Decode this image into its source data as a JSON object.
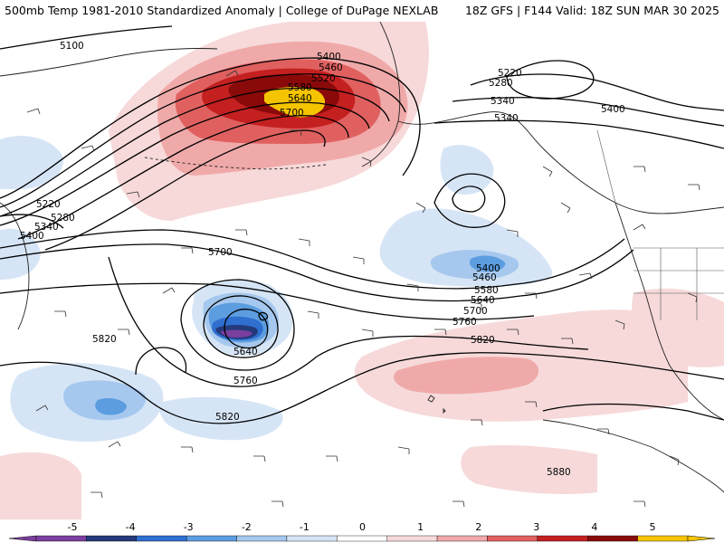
{
  "header": {
    "title": "500mb Temp 1981-2010 Standardized Anomaly | College of DuPage NEXLAB",
    "run_info": "18Z GFS | F144 Valid: 18Z SUN MAR 30 2025"
  },
  "contour_labels": [
    "5100",
    "5400",
    "5460",
    "5520",
    "5580",
    "5640",
    "5700",
    "5220",
    "5280",
    "5340",
    "5400",
    "5220",
    "5280",
    "5340",
    "5400",
    "5340",
    "5400",
    "5460",
    "5580",
    "5640",
    "5700",
    "5760",
    "5820",
    "5820",
    "5700",
    "5640",
    "5760",
    "5820",
    "5880"
  ],
  "colorbar": {
    "ticks": [
      "-5",
      "-4",
      "-3",
      "-2",
      "-1",
      "0",
      "1",
      "2",
      "3",
      "4",
      "5"
    ],
    "colors": [
      "#7b3fa0",
      "#243a7a",
      "#2f6fd0",
      "#5c9de0",
      "#a6c8ee",
      "#d6e5f6",
      "#ffffff",
      "#f7d9d9",
      "#f0a9a9",
      "#e06060",
      "#c42020",
      "#8a0a0a",
      "#f5c400"
    ]
  }
}
